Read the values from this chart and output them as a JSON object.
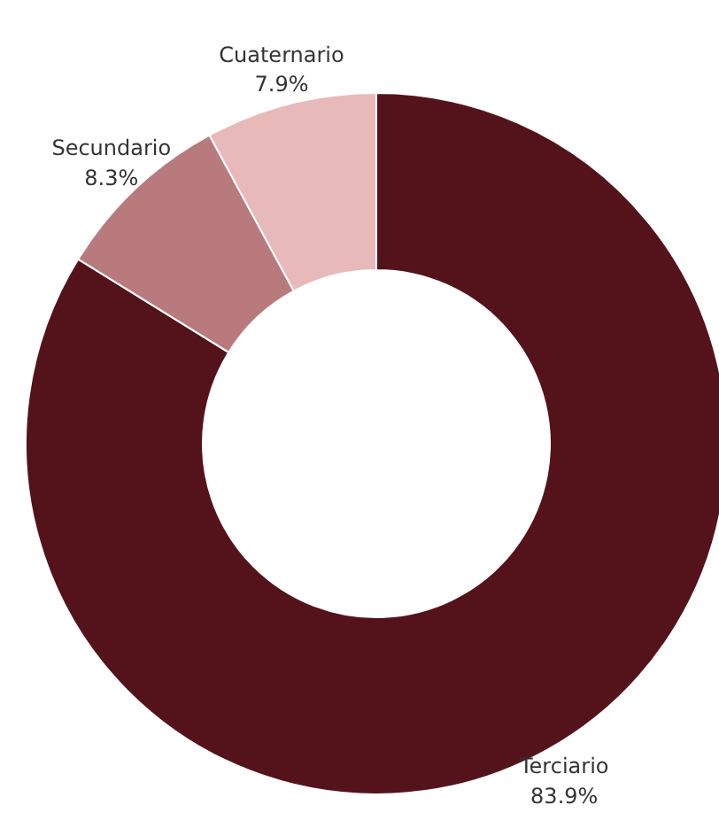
{
  "chart_data": {
    "type": "donut",
    "categories": [
      "Terciario",
      "Secundario",
      "Cuaternario"
    ],
    "values": [
      83.9,
      8.3,
      7.9
    ],
    "colors": [
      "#54131b",
      "#b97a7e",
      "#e8b9b9"
    ],
    "value_labels": [
      "83.9%",
      "8.3%",
      "7.9%"
    ]
  }
}
